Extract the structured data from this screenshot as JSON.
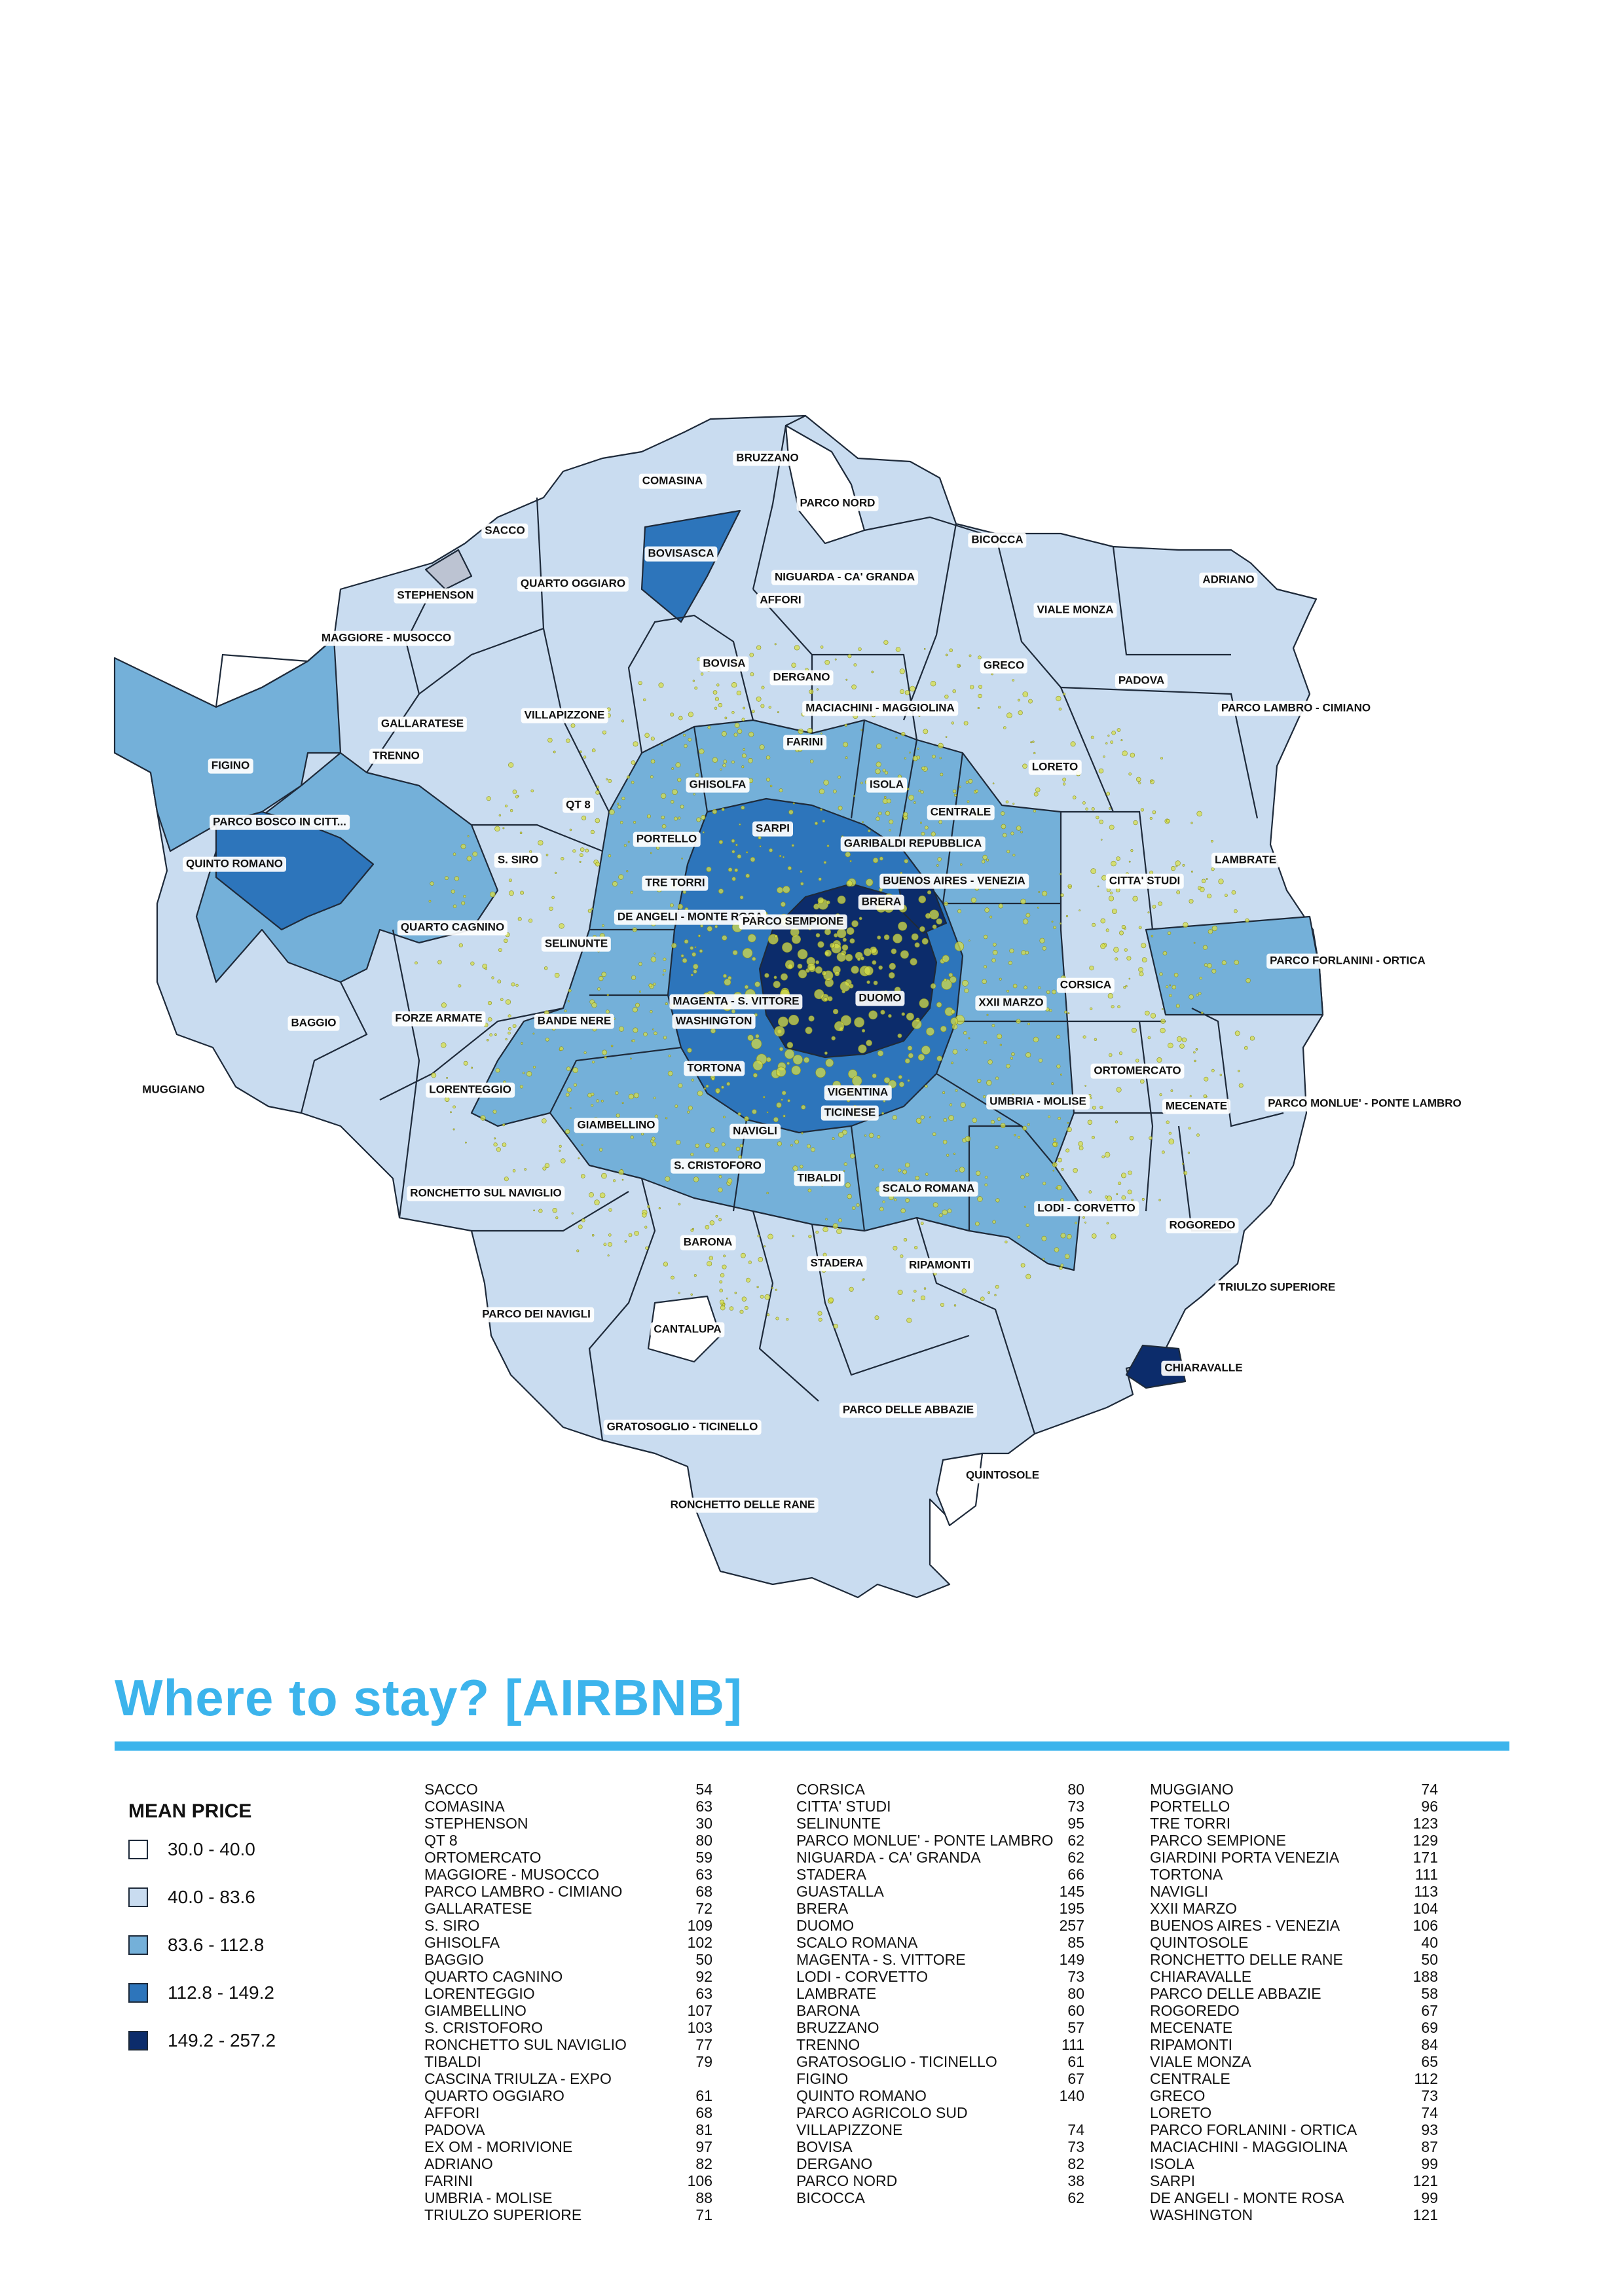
{
  "title": "Where to stay? [AIRBNB]",
  "legend": {
    "title": "MEAN PRICE",
    "classes": [
      {
        "range": "30.0 - 40.0",
        "color": "#ffffff"
      },
      {
        "range": "40.0 - 83.6",
        "color": "#c9dcf0"
      },
      {
        "range": "83.6 - 112.8",
        "color": "#74b0d9"
      },
      {
        "range": "112.8 - 149.2",
        "color": "#2d75bb"
      },
      {
        "range": "149.2 - 257.2",
        "color": "#0c2c6b"
      }
    ]
  },
  "colors": {
    "accent": "#3cb4ec",
    "listing_dots": "#d6df4a"
  },
  "map_labels": [
    "BRUZZANO",
    "COMASINA",
    "PARCO NORD",
    "SACCO",
    "BOVISASCA",
    "BICOCCA",
    "QUARTO OGGIARO",
    "NIGUARDA - CA' GRANDA",
    "ADRIANO",
    "STEPHENSON",
    "AFFORI",
    "VIALE MONZA",
    "MAGGIORE - MUSOCCO",
    "BOVISA",
    "GRECO",
    "DERGANO",
    "PADOVA",
    "PARCO LAMBRO - CIMIANO",
    "MACIACHINI - MAGGIOLINA",
    "GALLARATESE",
    "VILLAPIZZONE",
    "FARINI",
    "TRENNO",
    "FIGINO",
    "LORETO",
    "GHISOLFA",
    "ISOLA",
    "QT 8",
    "CENTRALE",
    "PARCO BOSCO IN CITT...",
    "SARPI",
    "PORTELLO",
    "GARIBALDI REPUBBLICA",
    "LAMBRATE",
    "QUINTO ROMANO",
    "S. SIRO",
    "TRE TORRI",
    "BUENOS AIRES - VENEZIA",
    "CITTA' STUDI",
    "BRERA",
    "DE ANGELI - MONTE ROSA",
    "PARCO SEMPIONE",
    "QUARTO CAGNINO",
    "SELINUNTE",
    "PARCO FORLANINI - ORTICA",
    "CORSICA",
    "MAGENTA - S. VITTORE",
    "DUOMO",
    "XXII MARZO",
    "BAGGIO",
    "FORZE ARMATE",
    "BANDE NERE",
    "WASHINGTON",
    "TORTONA",
    "ORTOMERCATO",
    "MUGGIANO",
    "LORENTEGGIO",
    "VIGENTINA",
    "UMBRIA - MOLISE",
    "MECENATE",
    "PARCO MONLUE' - PONTE LAMBRO",
    "TICINESE",
    "GIAMBELLINO",
    "NAVIGLI",
    "S. CRISTOFORO",
    "TIBALDI",
    "SCALO ROMANA",
    "RONCHETTO SUL NAVIGLIO",
    "LODI - CORVETTO",
    "ROGOREDO",
    "BARONA",
    "STADERA",
    "RIPAMONTI",
    "TRIULZO SUPERIORE",
    "PARCO DEI NAVIGLI",
    "CANTALUPA",
    "CHIARAVALLE",
    "PARCO DELLE ABBAZIE",
    "GRATOSOGLIO - TICINELLO",
    "QUINTOSOLE",
    "RONCHETTO DELLE RANE"
  ],
  "price_table": [
    [
      [
        "SACCO",
        "54"
      ],
      [
        "COMASINA",
        "63"
      ],
      [
        "STEPHENSON",
        "30"
      ],
      [
        "QT 8",
        "80"
      ],
      [
        "ORTOMERCATO",
        "59"
      ],
      [
        "MAGGIORE - MUSOCCO",
        "63"
      ],
      [
        "PARCO LAMBRO - CIMIANO",
        "68"
      ],
      [
        "GALLARATESE",
        "72"
      ],
      [
        "S. SIRO",
        "109"
      ],
      [
        "GHISOLFA",
        "102"
      ],
      [
        "BAGGIO",
        "50"
      ],
      [
        "QUARTO CAGNINO",
        "92"
      ],
      [
        "LORENTEGGIO",
        "63"
      ],
      [
        "GIAMBELLINO",
        "107"
      ],
      [
        "S. CRISTOFORO",
        "103"
      ],
      [
        "RONCHETTO SUL NAVIGLIO",
        "77"
      ],
      [
        "TIBALDI",
        "79"
      ],
      [
        "CASCINA TRIULZA - EXPO",
        ""
      ],
      [
        "QUARTO OGGIARO",
        "61"
      ],
      [
        "AFFORI",
        "68"
      ],
      [
        "PADOVA",
        "81"
      ],
      [
        "EX OM - MORIVIONE",
        "97"
      ],
      [
        "ADRIANO",
        "82"
      ],
      [
        "FARINI",
        "106"
      ],
      [
        "UMBRIA - MOLISE",
        "88"
      ],
      [
        "TRIULZO SUPERIORE",
        "71"
      ]
    ],
    [
      [
        "CORSICA",
        "80"
      ],
      [
        "CITTA' STUDI",
        "73"
      ],
      [
        "SELINUNTE",
        "95"
      ],
      [
        "PARCO MONLUE' - PONTE LAMBRO",
        "62"
      ],
      [
        "NIGUARDA - CA' GRANDA",
        "62"
      ],
      [
        "STADERA",
        "66"
      ],
      [
        "GUASTALLA",
        "145"
      ],
      [
        "BRERA",
        "195"
      ],
      [
        "DUOMO",
        "257"
      ],
      [
        "SCALO ROMANA",
        "85"
      ],
      [
        "MAGENTA - S. VITTORE",
        "149"
      ],
      [
        "LODI - CORVETTO",
        "73"
      ],
      [
        "LAMBRATE",
        "80"
      ],
      [
        "BARONA",
        "60"
      ],
      [
        "BRUZZANO",
        "57"
      ],
      [
        "TRENNO",
        "111"
      ],
      [
        "GRATOSOGLIO - TICINELLO",
        "61"
      ],
      [
        "FIGINO",
        "67"
      ],
      [
        "QUINTO ROMANO",
        "140"
      ],
      [
        "PARCO AGRICOLO SUD",
        ""
      ],
      [
        "VILLAPIZZONE",
        "74"
      ],
      [
        "BOVISA",
        "73"
      ],
      [
        "DERGANO",
        "82"
      ],
      [
        "PARCO NORD",
        "38"
      ],
      [
        "BICOCCA",
        "62"
      ]
    ],
    [
      [
        "MUGGIANO",
        "74"
      ],
      [
        "PORTELLO",
        "96"
      ],
      [
        "TRE TORRI",
        "123"
      ],
      [
        "PARCO SEMPIONE",
        "129"
      ],
      [
        "GIARDINI PORTA VENEZIA",
        "171"
      ],
      [
        "TORTONA",
        "111"
      ],
      [
        "NAVIGLI",
        "113"
      ],
      [
        "XXII MARZO",
        "104"
      ],
      [
        "BUENOS AIRES - VENEZIA",
        "106"
      ],
      [
        "QUINTOSOLE",
        "40"
      ],
      [
        "RONCHETTO DELLE RANE",
        "50"
      ],
      [
        "CHIARAVALLE",
        "188"
      ],
      [
        "PARCO DELLE ABBAZIE",
        "58"
      ],
      [
        "ROGOREDO",
        "67"
      ],
      [
        "MECENATE",
        "69"
      ],
      [
        "RIPAMONTI",
        "84"
      ],
      [
        "VIALE MONZA",
        "65"
      ],
      [
        "CENTRALE",
        "112"
      ],
      [
        "GRECO",
        "73"
      ],
      [
        "LORETO",
        "74"
      ],
      [
        "PARCO FORLANINI - ORTICA",
        "93"
      ],
      [
        "MACIACHINI - MAGGIOLINA",
        "87"
      ],
      [
        "ISOLA",
        "99"
      ],
      [
        "SARPI",
        "121"
      ],
      [
        "DE ANGELI - MONTE ROSA",
        "99"
      ],
      [
        "WASHINGTON",
        "121"
      ]
    ]
  ]
}
